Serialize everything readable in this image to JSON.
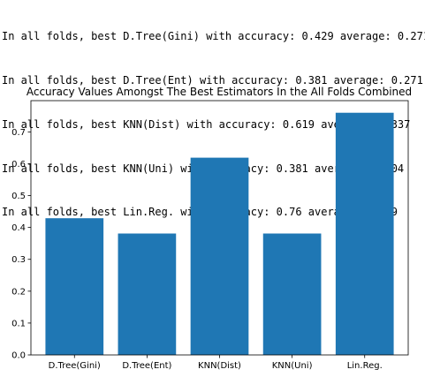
{
  "console": {
    "lines": [
      "In all folds, best D.Tree(Gini) with accuracy: 0.429 average: 0.271",
      "In all folds, best D.Tree(Ent) with accuracy: 0.381 average: 0.271",
      "In all folds, best KNN(Dist) with accuracy: 0.619 average: 0.337",
      "In all folds, best KNN(Uni) with accuracy: 0.381 average: 0.304",
      "In all folds, best Lin.Reg. with accuracy: 0.76 average: 0.299"
    ]
  },
  "chart_data": {
    "type": "bar",
    "title": "Accuracy Values Amongst The Best Estimators In the All Folds Combined",
    "categories": [
      "D.Tree(Gini)",
      "D.Tree(Ent)",
      "KNN(Dist)",
      "KNN(Uni)",
      "Lin.Reg."
    ],
    "values": [
      0.429,
      0.381,
      0.619,
      0.381,
      0.76
    ],
    "ylim": [
      0,
      0.798
    ],
    "yticks": [
      "0.0",
      "0.1",
      "0.2",
      "0.3",
      "0.4",
      "0.5",
      "0.6",
      "0.7"
    ],
    "xlabel": "",
    "ylabel": "",
    "grid": false,
    "bar_color": "#1f77b4"
  }
}
